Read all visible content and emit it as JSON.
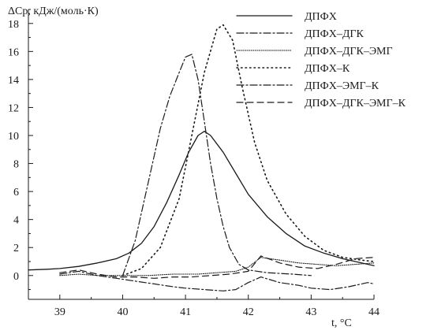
{
  "chart_data": {
    "type": "line",
    "xlabel": "t, °C",
    "ylabel": "ΔCp, кДж/(моль·К)",
    "xlim": [
      38.5,
      44
    ],
    "ylim": [
      -1.7,
      19
    ],
    "x_ticks": [
      39,
      40,
      41,
      42,
      43,
      44
    ],
    "y_ticks": [
      0,
      2,
      4,
      6,
      8,
      10,
      12,
      14,
      16,
      18
    ],
    "grid": false,
    "legend_position": "top-right",
    "series": [
      {
        "name": "ДПФХ",
        "style": "solid",
        "x": [
          38.5,
          38.8,
          39.0,
          39.3,
          39.6,
          39.9,
          40.1,
          40.3,
          40.5,
          40.7,
          40.9,
          41.05,
          41.2,
          41.3,
          41.4,
          41.6,
          41.8,
          42.0,
          42.3,
          42.6,
          42.9,
          43.2,
          43.5,
          43.8,
          44.0
        ],
        "y": [
          0.4,
          0.45,
          0.5,
          0.65,
          0.9,
          1.2,
          1.6,
          2.3,
          3.5,
          5.2,
          7.2,
          8.8,
          10.0,
          10.3,
          10.0,
          8.8,
          7.3,
          5.8,
          4.2,
          3.0,
          2.1,
          1.6,
          1.2,
          0.9,
          0.7
        ]
      },
      {
        "name": "ДПФХ–ДГК",
        "style": "dashdot",
        "x": [
          39.0,
          39.3,
          39.6,
          39.9,
          40.2,
          40.5,
          40.8,
          41.0,
          41.3,
          41.6,
          41.8,
          42.0,
          42.2,
          42.5,
          42.8,
          43.0,
          43.3,
          43.6,
          43.9,
          44.0
        ],
        "y": [
          0.1,
          0.3,
          0.0,
          -0.2,
          -0.4,
          -0.6,
          -0.8,
          -0.9,
          -1.0,
          -1.1,
          -1.0,
          -0.5,
          -0.1,
          -0.5,
          -0.7,
          -0.9,
          -1.0,
          -0.8,
          -0.5,
          -0.6
        ]
      },
      {
        "name": "ДПФХ–ДГК–ЭМГ",
        "style": "dotted-fine",
        "x": [
          39.0,
          39.3,
          39.6,
          40.0,
          40.4,
          40.8,
          41.2,
          41.5,
          41.8,
          42.0,
          42.2,
          42.5,
          42.8,
          43.1,
          43.4,
          43.7,
          44.0
        ],
        "y": [
          0.0,
          0.1,
          0.0,
          0.0,
          0.0,
          0.1,
          0.1,
          0.2,
          0.3,
          0.6,
          1.3,
          1.1,
          0.9,
          0.8,
          0.7,
          0.8,
          0.9
        ]
      },
      {
        "name": "ДПФХ–К",
        "style": "dotted",
        "x": [
          40.0,
          40.3,
          40.6,
          40.9,
          41.1,
          41.3,
          41.5,
          41.6,
          41.75,
          41.9,
          42.1,
          42.3,
          42.6,
          42.9,
          43.2,
          43.5,
          43.8,
          44.0
        ],
        "y": [
          0.0,
          0.5,
          2.0,
          5.5,
          10.0,
          14.5,
          17.6,
          17.9,
          16.8,
          13.5,
          9.5,
          6.8,
          4.4,
          2.8,
          1.8,
          1.3,
          1.1,
          1.0
        ]
      },
      {
        "name": "ДПФХ–ЭМГ–К",
        "style": "dashdot",
        "x": [
          40.0,
          40.2,
          40.4,
          40.6,
          40.75,
          40.9,
          41.0,
          41.1,
          41.2,
          41.3,
          41.4,
          41.5,
          41.6,
          41.7,
          41.85,
          42.0,
          42.3,
          42.7,
          43.0
        ],
        "y": [
          0.0,
          2.5,
          6.5,
          10.5,
          12.8,
          14.5,
          15.6,
          15.8,
          14.0,
          11.0,
          8.0,
          5.5,
          3.5,
          2.0,
          0.8,
          0.4,
          0.2,
          0.1,
          0.0
        ]
      },
      {
        "name": "ДПФХ–ДГК–ЭМГ–К",
        "style": "dashed",
        "x": [
          39.0,
          39.3,
          39.6,
          39.9,
          40.2,
          40.5,
          40.8,
          41.1,
          41.4,
          41.7,
          42.0,
          42.2,
          42.5,
          42.8,
          43.1,
          43.4,
          43.7,
          44.0
        ],
        "y": [
          0.2,
          0.4,
          0.1,
          -0.1,
          -0.1,
          -0.2,
          -0.1,
          -0.1,
          0.0,
          0.1,
          0.3,
          1.4,
          0.9,
          0.6,
          0.5,
          0.8,
          1.2,
          1.3
        ]
      }
    ]
  }
}
